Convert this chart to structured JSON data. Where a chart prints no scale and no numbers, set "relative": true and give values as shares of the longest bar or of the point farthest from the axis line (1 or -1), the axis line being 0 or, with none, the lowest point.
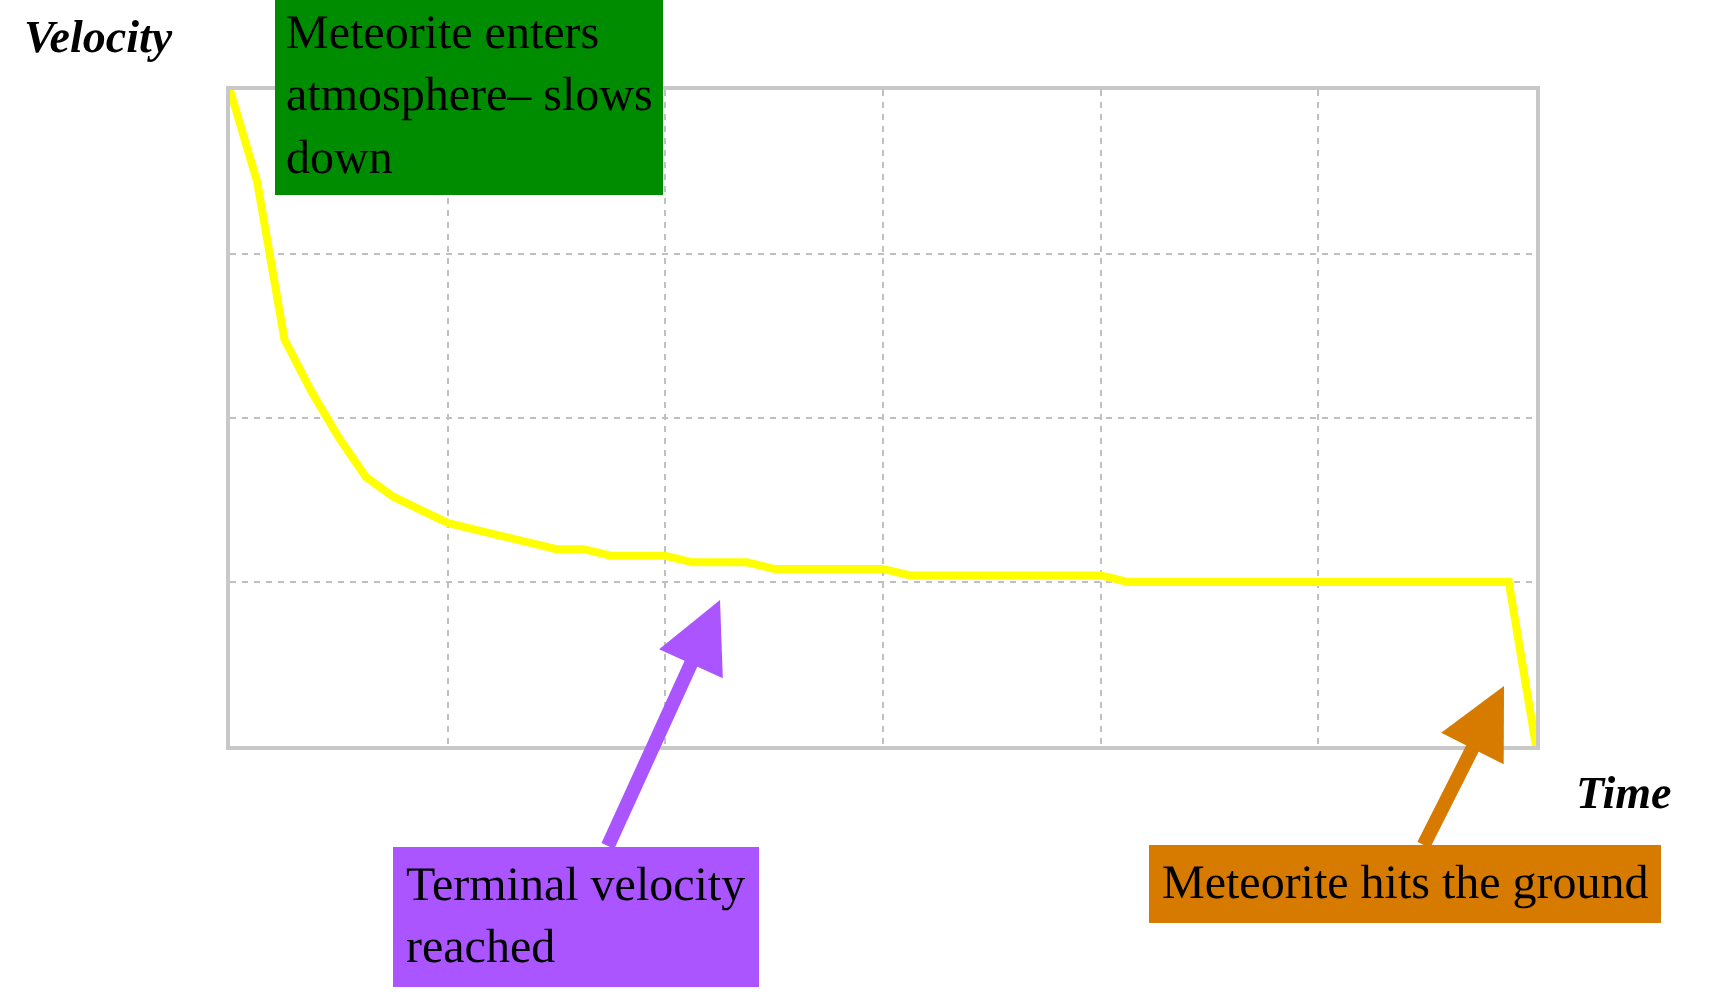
{
  "chart_data": {
    "type": "line",
    "relative": true,
    "xlabel": "Time",
    "ylabel": "Velocity",
    "grid": true,
    "marker": "none",
    "line_style": "solid",
    "categories": [
      null,
      null,
      null,
      null,
      null,
      null,
      null,
      null,
      null,
      null,
      null,
      null,
      null,
      null,
      null,
      null,
      null,
      null,
      null,
      null,
      null,
      null,
      null,
      null,
      null,
      null,
      null,
      null,
      null,
      null,
      null,
      null,
      null,
      null,
      null,
      null,
      null,
      null,
      null,
      null,
      null,
      null,
      null,
      null,
      null,
      null,
      null,
      null,
      null
    ],
    "series": [
      {
        "color": "#ffff00",
        "values": [
          1.0,
          0.86,
          0.62,
          0.54,
          0.47,
          0.41,
          0.38,
          0.36,
          0.34,
          0.33,
          0.32,
          0.31,
          0.3,
          0.3,
          0.29,
          0.29,
          0.29,
          0.28,
          0.28,
          0.28,
          0.27,
          0.27,
          0.27,
          0.27,
          0.27,
          0.26,
          0.26,
          0.26,
          0.26,
          0.26,
          0.26,
          0.26,
          0.26,
          0.25,
          0.25,
          0.25,
          0.25,
          0.25,
          0.25,
          0.25,
          0.25,
          0.25,
          0.25,
          0.25,
          0.25,
          0.25,
          0.25,
          0.25,
          0.0
        ]
      }
    ],
    "annotations": [
      "Meteorite enters\natmosphere– slows\ndown",
      "Terminal velocity\nreached",
      "Meteorite hits the ground"
    ]
  }
}
